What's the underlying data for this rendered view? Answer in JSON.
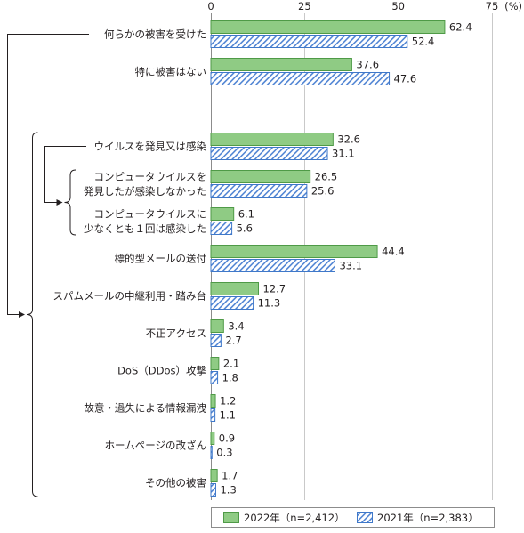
{
  "chart_data": {
    "type": "bar",
    "orientation": "horizontal",
    "categories": [
      "何らかの被害を受けた",
      "特に被害はない",
      "ウイルスを発見又は感染",
      "コンピュータウイルスを\n発見したが感染しなかった",
      "コンピュータウイルスに\n少なくとも１回は感染した",
      "標的型メールの送付",
      "スパムメールの中継利用・踏み台",
      "不正アクセス",
      "DoS（DDos）攻撃",
      "故意・過失による情報漏洩",
      "ホームページの改ざん",
      "その他の被害"
    ],
    "series": [
      {
        "name": "2022年（n=2,412）",
        "values": [
          62.4,
          37.6,
          32.6,
          26.5,
          6.1,
          44.4,
          12.7,
          3.4,
          2.1,
          1.2,
          0.9,
          1.7
        ],
        "color": "#8fcb84",
        "border_color": "#4f9a47",
        "fill_style": "solid"
      },
      {
        "name": "2021年（n=2,383）",
        "values": [
          52.4,
          47.6,
          31.1,
          25.6,
          5.6,
          33.1,
          11.3,
          2.7,
          1.8,
          1.1,
          0.3,
          1.3
        ],
        "color": "#4a80d2",
        "border_color": "#3f78c9",
        "fill_style": "diagonal-hatch"
      }
    ],
    "xlim": [
      0,
      75
    ],
    "xticks": [
      0,
      25,
      50,
      75
    ],
    "x_unit": "(%)",
    "x_axis_position": "top",
    "grid": true,
    "data_labels": true,
    "legend": "bottom",
    "groups": [
      {
        "parent_index": 0,
        "child_indices": [
          2,
          3,
          4,
          5,
          6,
          7,
          8,
          9,
          10,
          11
        ]
      },
      {
        "parent_index": 2,
        "child_indices": [
          3,
          4
        ]
      }
    ]
  }
}
